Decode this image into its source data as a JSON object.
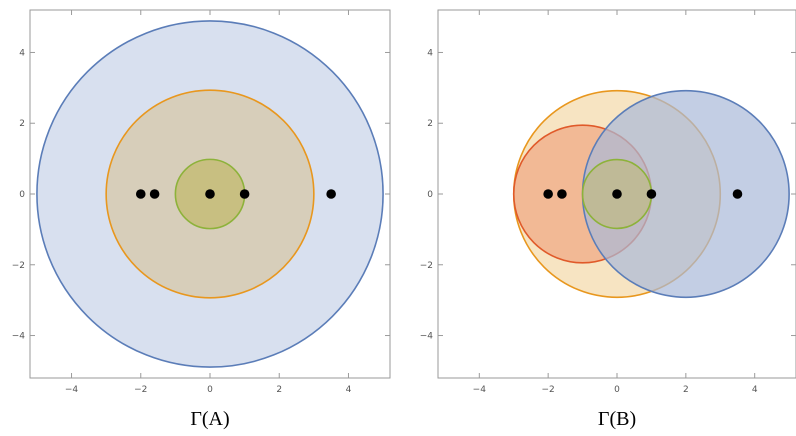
{
  "chart_data": [
    {
      "type": "scatter",
      "caption": "Γ(A)",
      "xlim": [
        -5.2,
        5.2
      ],
      "ylim": [
        -5.2,
        5.2
      ],
      "x_ticks": [
        -4,
        -2,
        0,
        2,
        4
      ],
      "y_ticks": [
        -4,
        -2,
        0,
        2,
        4
      ],
      "grid": false,
      "discs": [
        {
          "name": "",
          "center": [
            0,
            0
          ],
          "radius": 5,
          "stroke": "#5b7db8",
          "fill": "#c7d3e8"
        },
        {
          "name": "",
          "center": [
            0,
            0
          ],
          "radius": 3,
          "stroke": "#e8971e",
          "fill": "#d7c6a4"
        },
        {
          "name": "",
          "center": [
            0,
            0
          ],
          "radius": 1,
          "stroke": "#8db23a",
          "fill": "#c2b96a"
        }
      ],
      "points": [
        {
          "x": -2.0,
          "y": 0
        },
        {
          "x": -1.6,
          "y": 0
        },
        {
          "x": 0,
          "y": 0
        },
        {
          "x": 1.0,
          "y": 0
        },
        {
          "x": 3.5,
          "y": 0
        }
      ]
    },
    {
      "type": "scatter",
      "caption": "Γ(B)",
      "xlim": [
        -5.2,
        5.2
      ],
      "ylim": [
        -5.2,
        5.2
      ],
      "x_ticks": [
        -4,
        -2,
        0,
        2,
        4
      ],
      "y_ticks": [
        -4,
        -2,
        0,
        2,
        4
      ],
      "grid": false,
      "discs": [
        {
          "name": "",
          "center": [
            0,
            0
          ],
          "radius": 3,
          "stroke": "#e8971e",
          "fill": "#f3d9a8"
        },
        {
          "name": "",
          "center": [
            -1,
            0
          ],
          "radius": 2,
          "stroke": "#e05a2a",
          "fill": "#f0a682"
        },
        {
          "name": "",
          "center": [
            2,
            0
          ],
          "radius": 3,
          "stroke": "#5b7db8",
          "fill": "#a9b9d8"
        },
        {
          "name": "",
          "center": [
            0,
            0
          ],
          "radius": 1,
          "stroke": "#8db23a",
          "fill": "#bfba84"
        }
      ],
      "points": [
        {
          "x": -2.0,
          "y": 0
        },
        {
          "x": -1.6,
          "y": 0
        },
        {
          "x": 0,
          "y": 0
        },
        {
          "x": 1.0,
          "y": 0
        },
        {
          "x": 3.5,
          "y": 0
        }
      ]
    }
  ],
  "colors": {
    "frame": "#9a9a9a",
    "point": "#000000"
  }
}
